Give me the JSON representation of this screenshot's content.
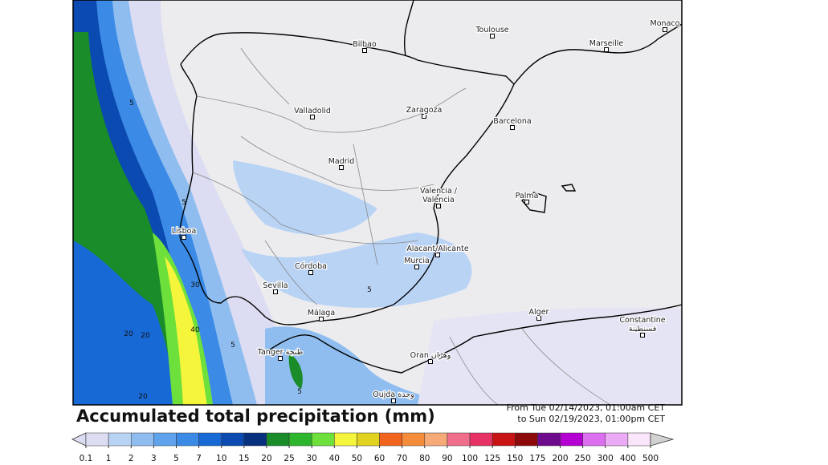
{
  "title": "Accumulated total precipitation (mm)",
  "date_from": "From Tue 02/14/2023, 01:00am CET",
  "date_to": "to Sun 02/19/2023, 01:00pm CET",
  "cities": [
    {
      "lines": [
        "Bilbao"
      ]
    },
    {
      "lines": [
        "Toulouse"
      ]
    },
    {
      "lines": [
        "Marseille"
      ]
    },
    {
      "lines": [
        "Monaco"
      ]
    },
    {
      "lines": [
        "Valladolid"
      ]
    },
    {
      "lines": [
        "Zaragoza"
      ]
    },
    {
      "lines": [
        "Barcelona"
      ]
    },
    {
      "lines": [
        "Madrid"
      ]
    },
    {
      "lines": [
        "Valencia /",
        "València"
      ]
    },
    {
      "lines": [
        "Palma"
      ]
    },
    {
      "lines": [
        "Lisboa"
      ]
    },
    {
      "lines": [
        "Alacant/Alicante"
      ]
    },
    {
      "lines": [
        "Murcia"
      ]
    },
    {
      "lines": [
        "Córdoba"
      ]
    },
    {
      "lines": [
        "Sevilla"
      ]
    },
    {
      "lines": [
        "Málaga"
      ]
    },
    {
      "lines": [
        "Alger"
      ]
    },
    {
      "lines": [
        "Constantine",
        "قسنطينة"
      ]
    },
    {
      "lines": [
        "Tanger طنجة"
      ]
    },
    {
      "lines": [
        "Oran وهران"
      ]
    },
    {
      "lines": [
        "Oujda وجدة"
      ]
    }
  ],
  "contour_labels": [
    5,
    5,
    5,
    5,
    5,
    20,
    20,
    20,
    30,
    40
  ],
  "colorbar": {
    "levels": [
      0.1,
      1,
      2,
      3,
      5,
      7,
      10,
      15,
      20,
      25,
      30,
      40,
      50,
      60,
      70,
      80,
      90,
      100,
      125,
      150,
      175,
      200,
      250,
      300,
      400,
      500
    ],
    "colors": [
      "#dcdcf2",
      "#b9d3f5",
      "#8fbdf0",
      "#5fa3ec",
      "#3b8ae6",
      "#1769d6",
      "#0b4ab0",
      "#07307e",
      "#1a8c2a",
      "#2db52d",
      "#6ee03c",
      "#f5f53c",
      "#e0d21e",
      "#f0641e",
      "#f58c3c",
      "#f5aa78",
      "#f06e8c",
      "#e63264",
      "#c81414",
      "#8c0a0a",
      "#6e0a8c",
      "#b400d2",
      "#dc6ef0",
      "#eaaaf5",
      "#fae6fa",
      "#d2d2d2"
    ]
  }
}
